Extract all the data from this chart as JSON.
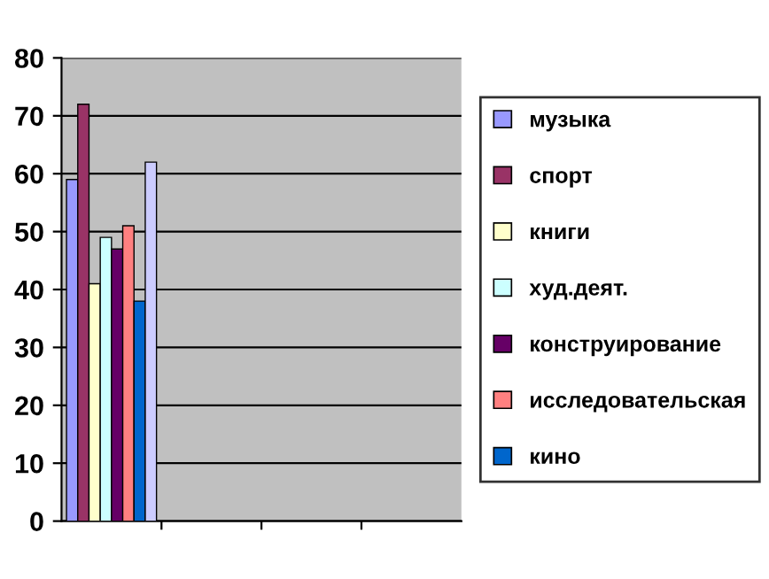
{
  "chart_data": {
    "type": "bar",
    "categories": [
      null,
      null,
      null,
      null
    ],
    "series": [
      {
        "name": "музыка",
        "color": "#9999ff",
        "values": [
          59,
          null,
          null,
          null
        ]
      },
      {
        "name": "спорт",
        "color": "#993366",
        "values": [
          72,
          null,
          null,
          null
        ]
      },
      {
        "name": "книги",
        "color": "#ffffcc",
        "values": [
          41,
          null,
          null,
          null
        ]
      },
      {
        "name": "худ.деят.",
        "color": "#ccffff",
        "values": [
          49,
          null,
          null,
          null
        ]
      },
      {
        "name": "конструирование",
        "color": "#660066",
        "values": [
          47,
          null,
          null,
          null
        ]
      },
      {
        "name": "исследовательская",
        "color": "#ff8080",
        "values": [
          51,
          null,
          null,
          null
        ]
      },
      {
        "name": "кино",
        "color": "#0066cc",
        "values": [
          38,
          null,
          null,
          null
        ]
      },
      {
        "color": "#ccccff",
        "values": [
          62,
          null,
          null,
          null
        ]
      }
    ],
    "ylim": [
      0,
      80
    ],
    "yticks": [
      0,
      10,
      20,
      30,
      40,
      50,
      60,
      70,
      80
    ],
    "grid": "y",
    "legend": "right"
  }
}
